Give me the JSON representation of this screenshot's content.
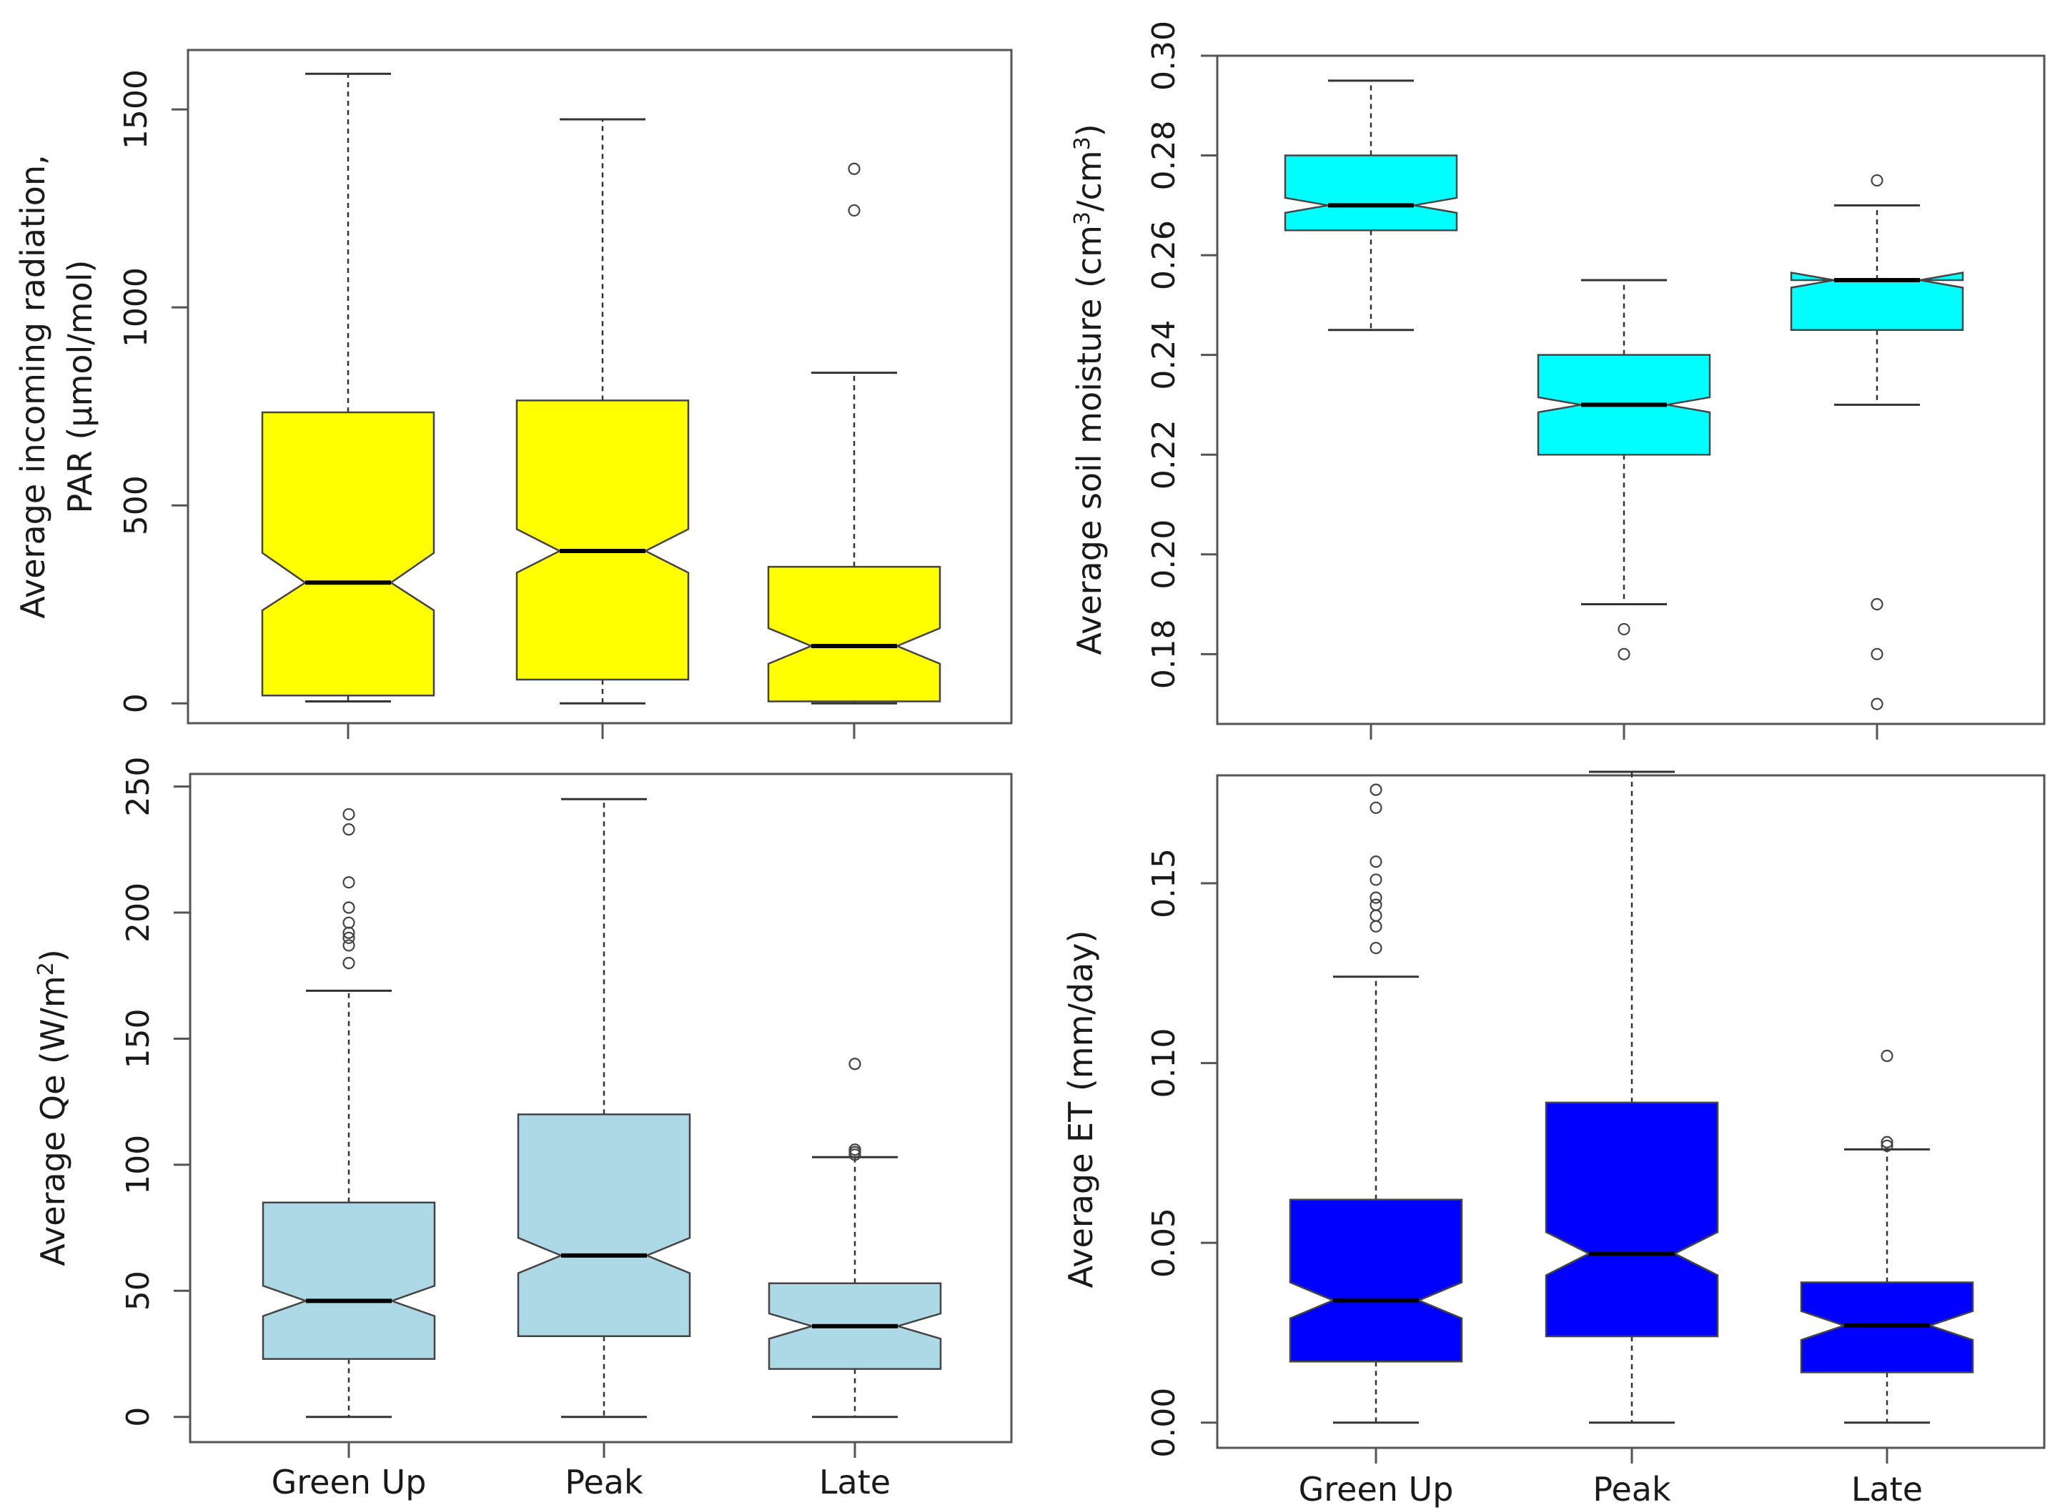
{
  "chart_data": [
    {
      "type": "boxplot",
      "id": "par",
      "ylabel_line1": "Average incoming radiation,",
      "ylabel_line2": "PAR (µmol/mol)",
      "ylim": [
        -50,
        1650
      ],
      "yticks": [
        {
          "value": 0,
          "label": "0"
        },
        {
          "value": 500,
          "label": "500"
        },
        {
          "value": 1000,
          "label": "1000"
        },
        {
          "value": 1500,
          "label": "1500"
        }
      ],
      "fill": "#ffff00",
      "categories": [
        "Green Up",
        "Peak",
        "Late"
      ],
      "show_category_labels": false,
      "boxes": [
        {
          "name": "Green Up",
          "whisker_low": 5,
          "q1": 20,
          "median": 305,
          "q3": 735,
          "whisker_high": 1590,
          "notch_low": 235,
          "notch_high": 380,
          "outliers": []
        },
        {
          "name": "Peak",
          "whisker_low": 0,
          "q1": 60,
          "median": 385,
          "q3": 765,
          "whisker_high": 1475,
          "notch_low": 330,
          "notch_high": 440,
          "outliers": []
        },
        {
          "name": "Late",
          "whisker_low": 0,
          "q1": 5,
          "median": 145,
          "q3": 345,
          "whisker_high": 835,
          "notch_low": 100,
          "notch_high": 190,
          "outliers": [
            1245,
            1350
          ]
        }
      ]
    },
    {
      "type": "boxplot",
      "id": "soil-moisture",
      "ylabel_text": "Average soil moisture (cm",
      "ylabel_sup1": "3",
      "ylabel_mid": "/cm",
      "ylabel_sup2": "3",
      "ylabel_end": ")",
      "ylim": [
        0.166,
        0.3
      ],
      "yticks": [
        {
          "value": 0.18,
          "label": "0.18"
        },
        {
          "value": 0.2,
          "label": "0.20"
        },
        {
          "value": 0.22,
          "label": "0.22"
        },
        {
          "value": 0.24,
          "label": "0.24"
        },
        {
          "value": 0.26,
          "label": "0.26"
        },
        {
          "value": 0.28,
          "label": "0.28"
        },
        {
          "value": 0.3,
          "label": "0.30"
        }
      ],
      "fill": "#00ffff",
      "categories": [
        "Green Up",
        "Peak",
        "Late"
      ],
      "show_category_labels": false,
      "boxes": [
        {
          "name": "Green Up",
          "whisker_low": 0.245,
          "q1": 0.265,
          "median": 0.27,
          "q3": 0.28,
          "whisker_high": 0.295,
          "notch_low": 0.2685,
          "notch_high": 0.2715,
          "outliers": []
        },
        {
          "name": "Peak",
          "whisker_low": 0.19,
          "q1": 0.22,
          "median": 0.23,
          "q3": 0.24,
          "whisker_high": 0.255,
          "notch_low": 0.2285,
          "notch_high": 0.2315,
          "outliers": [
            0.18,
            0.185
          ]
        },
        {
          "name": "Late",
          "whisker_low": 0.23,
          "q1": 0.245,
          "median": 0.255,
          "q3": 0.255,
          "whisker_high": 0.27,
          "notch_low": 0.2535,
          "notch_high": 0.2565,
          "outliers": [
            0.17,
            0.18,
            0.19,
            0.275
          ]
        }
      ]
    },
    {
      "type": "boxplot",
      "id": "qe",
      "ylabel_text": "Average Qe (W/m",
      "ylabel_sup1": "2",
      "ylabel_end": ")",
      "ylim": [
        -10,
        255
      ],
      "yticks": [
        {
          "value": 0,
          "label": "0"
        },
        {
          "value": 50,
          "label": "50"
        },
        {
          "value": 100,
          "label": "100"
        },
        {
          "value": 150,
          "label": "150"
        },
        {
          "value": 200,
          "label": "200"
        },
        {
          "value": 250,
          "label": "250"
        }
      ],
      "fill": "#add8e6",
      "categories": [
        "Green Up",
        "Peak",
        "Late"
      ],
      "show_category_labels": true,
      "boxes": [
        {
          "name": "Green Up",
          "whisker_low": 0,
          "q1": 23,
          "median": 46,
          "q3": 85,
          "whisker_high": 169,
          "notch_low": 40,
          "notch_high": 52,
          "outliers": [
            180,
            187,
            190,
            192,
            196,
            202,
            212,
            233,
            239
          ]
        },
        {
          "name": "Peak",
          "whisker_low": 0,
          "q1": 32,
          "median": 64,
          "q3": 120,
          "whisker_high": 245,
          "notch_low": 57,
          "notch_high": 71,
          "outliers": []
        },
        {
          "name": "Late",
          "whisker_low": 0,
          "q1": 19,
          "median": 36,
          "q3": 53,
          "whisker_high": 103,
          "notch_low": 31,
          "notch_high": 41,
          "outliers": [
            104,
            105,
            106,
            140
          ]
        }
      ]
    },
    {
      "type": "boxplot",
      "id": "et",
      "ylabel_text": "Average ET (mm/day)",
      "ylim": [
        -0.007,
        0.18
      ],
      "yticks": [
        {
          "value": 0.0,
          "label": "0.00"
        },
        {
          "value": 0.05,
          "label": "0.05"
        },
        {
          "value": 0.1,
          "label": "0.10"
        },
        {
          "value": 0.15,
          "label": "0.15"
        }
      ],
      "fill": "#0000ff",
      "categories": [
        "Green Up",
        "Peak",
        "Late"
      ],
      "show_category_labels": true,
      "boxes": [
        {
          "name": "Green Up",
          "whisker_low": 0.0,
          "q1": 0.017,
          "median": 0.034,
          "q3": 0.062,
          "whisker_high": 0.124,
          "notch_low": 0.029,
          "notch_high": 0.039,
          "outliers": [
            0.132,
            0.138,
            0.141,
            0.144,
            0.146,
            0.151,
            0.156,
            0.171,
            0.176
          ]
        },
        {
          "name": "Peak",
          "whisker_low": 0.0,
          "q1": 0.024,
          "median": 0.047,
          "q3": 0.089,
          "whisker_high": 0.181,
          "notch_low": 0.041,
          "notch_high": 0.053,
          "outliers": []
        },
        {
          "name": "Late",
          "whisker_low": 0.0,
          "q1": 0.014,
          "median": 0.027,
          "q3": 0.039,
          "whisker_high": 0.076,
          "notch_low": 0.023,
          "notch_high": 0.031,
          "outliers": [
            0.077,
            0.078,
            0.102
          ]
        }
      ]
    }
  ]
}
